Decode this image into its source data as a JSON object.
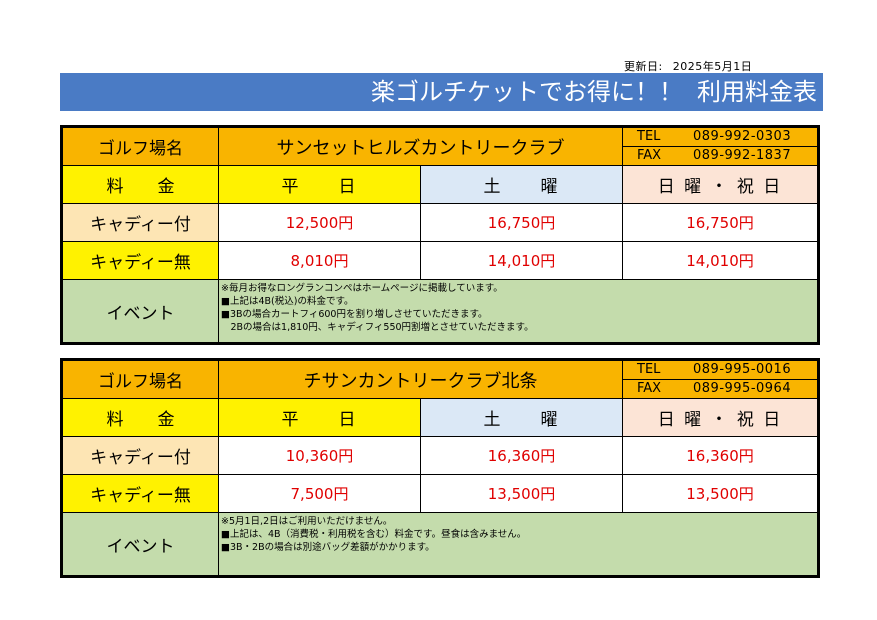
{
  "updated": {
    "label": "更新日:",
    "date": "2025年5月1日"
  },
  "banner": {
    "title": "楽ゴルチケットでお得に！！",
    "subtitle": "利用料金表"
  },
  "labels": {
    "course_name": "ゴルフ場名",
    "fee": "料　　金",
    "with_caddy": "キャディー付",
    "without_caddy": "キャディー無",
    "event": "イベント",
    "tel": "TEL",
    "fax": "FAX",
    "weekday": "平　　日",
    "saturday": "土　　曜",
    "holiday": "日 曜 ・ 祝 日"
  },
  "courses": [
    {
      "name": "サンセットヒルズカントリークラブ",
      "tel": "089-992-0303",
      "fax": "089-992-1837",
      "with_caddy": {
        "weekday": "12,500円",
        "saturday": "16,750円",
        "holiday": "16,750円"
      },
      "without_caddy": {
        "weekday": "8,010円",
        "saturday": "14,010円",
        "holiday": "14,010円"
      },
      "notes": [
        "※毎月お得なロングランコンペはホームページに掲載しています。",
        "■上記は4B(税込)の料金です。",
        "■3Bの場合カートフィ600円を割り増しさせていただきます。",
        "　2Bの場合は1,810円、キャディフィ550円割増とさせていただきます。"
      ]
    },
    {
      "name": "チサンカントリークラブ北条",
      "tel": "089-995-0016",
      "fax": "089-995-0964",
      "with_caddy": {
        "weekday": "10,360円",
        "saturday": "16,360円",
        "holiday": "16,360円"
      },
      "without_caddy": {
        "weekday": "7,500円",
        "saturday": "13,500円",
        "holiday": "13,500円"
      },
      "notes": [
        "※5月1日,2日はご利用いただけません。",
        "■上記は、4B（消費税・利用税を含む）料金です。昼食は含みません。",
        "■3B・2Bの場合は別途バッグ差額がかかります。"
      ]
    }
  ]
}
